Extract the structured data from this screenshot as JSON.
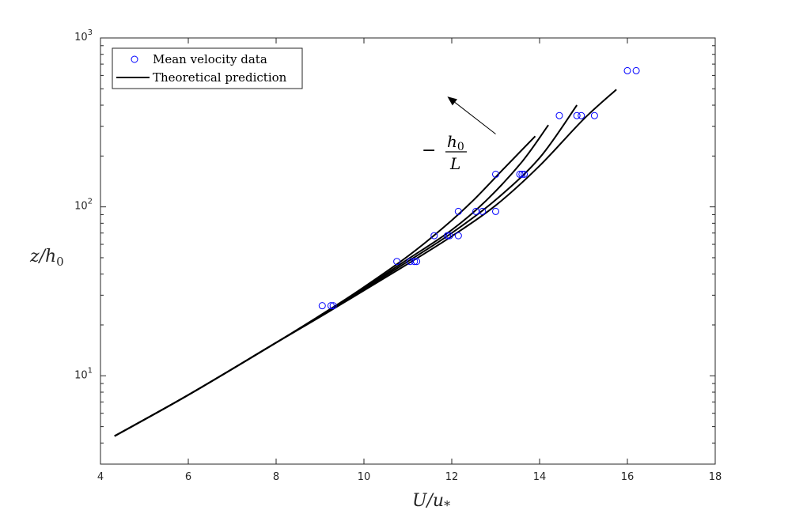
{
  "chart_data": {
    "type": "scatter",
    "title": "",
    "xlabel": "U/u",
    "xlabel_sub": "*",
    "ylabel": "z/h",
    "ylabel_sub": "0",
    "xlim": [
      4,
      18
    ],
    "ylim": [
      3,
      1000
    ],
    "yscale": "log",
    "xticks": [
      4,
      6,
      8,
      10,
      12,
      14,
      16,
      18
    ],
    "yticks": [
      {
        "value": 10,
        "base": "10",
        "exp": "1"
      },
      {
        "value": 100,
        "base": "10",
        "exp": "2"
      },
      {
        "value": 1000,
        "base": "10",
        "exp": "3"
      }
    ],
    "grid": false,
    "legend": {
      "placement": "top-left",
      "entries": [
        {
          "label": "Mean velocity data",
          "marker": "circle",
          "color": "#0000ff"
        },
        {
          "label": "Theoretical prediction",
          "marker": "line",
          "color": "#000000"
        }
      ]
    },
    "annotation": {
      "prefix": "−",
      "numerator": "h",
      "numerator_sub": "0",
      "denominator": "L",
      "arrow_from": [
        13.0,
        270
      ],
      "arrow_to": [
        11.9,
        450
      ]
    },
    "series": [
      {
        "name": "Mean velocity data",
        "kind": "scatter",
        "color": "#0000ff",
        "points": [
          [
            9.05,
            26
          ],
          [
            9.25,
            26
          ],
          [
            9.3,
            26
          ],
          [
            10.75,
            47.5
          ],
          [
            11.05,
            47.5
          ],
          [
            11.15,
            47.5
          ],
          [
            11.2,
            47.5
          ],
          [
            11.6,
            67.5
          ],
          [
            11.9,
            67.5
          ],
          [
            11.95,
            67.5
          ],
          [
            12.15,
            67.5
          ],
          [
            12.15,
            94
          ],
          [
            12.55,
            94
          ],
          [
            12.7,
            94
          ],
          [
            13.0,
            94
          ],
          [
            13.0,
            156
          ],
          [
            13.55,
            156
          ],
          [
            13.6,
            156
          ],
          [
            13.65,
            156
          ],
          [
            14.45,
            347
          ],
          [
            14.85,
            347
          ],
          [
            14.95,
            347
          ],
          [
            15.25,
            347
          ],
          [
            16.0,
            640
          ],
          [
            16.2,
            640
          ]
        ]
      },
      {
        "name": "Theoretical prediction",
        "kind": "line",
        "color": "#000000",
        "points": [
          [
            4.32,
            4.4
          ],
          [
            6.0,
            7.7
          ],
          [
            8.0,
            15.7
          ],
          [
            9.2,
            24.5
          ],
          [
            10.0,
            33.5
          ],
          [
            11.0,
            51.0
          ],
          [
            11.8,
            75.0
          ],
          [
            12.5,
            110
          ],
          [
            13.2,
            170
          ],
          [
            13.9,
            262
          ]
        ]
      },
      {
        "name": "",
        "kind": "line",
        "color": "#000000",
        "points": [
          [
            4.32,
            4.4
          ],
          [
            6.0,
            7.7
          ],
          [
            8.0,
            15.7
          ],
          [
            9.2,
            24.5
          ],
          [
            10.0,
            33.0
          ],
          [
            11.0,
            49.0
          ],
          [
            12.0,
            73.0
          ],
          [
            12.8,
            110
          ],
          [
            13.6,
            185
          ],
          [
            14.2,
            305
          ]
        ]
      },
      {
        "name": "",
        "kind": "line",
        "color": "#000000",
        "points": [
          [
            4.32,
            4.4
          ],
          [
            6.0,
            7.7
          ],
          [
            8.0,
            15.7
          ],
          [
            9.2,
            24.0
          ],
          [
            10.0,
            32.5
          ],
          [
            11.0,
            47.5
          ],
          [
            12.0,
            70.0
          ],
          [
            13.0,
            110
          ],
          [
            14.0,
            195
          ],
          [
            14.85,
            400
          ]
        ]
      },
      {
        "name": "",
        "kind": "line",
        "color": "#000000",
        "points": [
          [
            4.32,
            4.4
          ],
          [
            6.0,
            7.7
          ],
          [
            8.0,
            15.7
          ],
          [
            9.2,
            24.0
          ],
          [
            10.0,
            32.0
          ],
          [
            11.0,
            46.0
          ],
          [
            12.0,
            67.0
          ],
          [
            13.0,
            102
          ],
          [
            14.0,
            175
          ],
          [
            15.0,
            330
          ],
          [
            15.75,
            495
          ]
        ]
      }
    ]
  }
}
